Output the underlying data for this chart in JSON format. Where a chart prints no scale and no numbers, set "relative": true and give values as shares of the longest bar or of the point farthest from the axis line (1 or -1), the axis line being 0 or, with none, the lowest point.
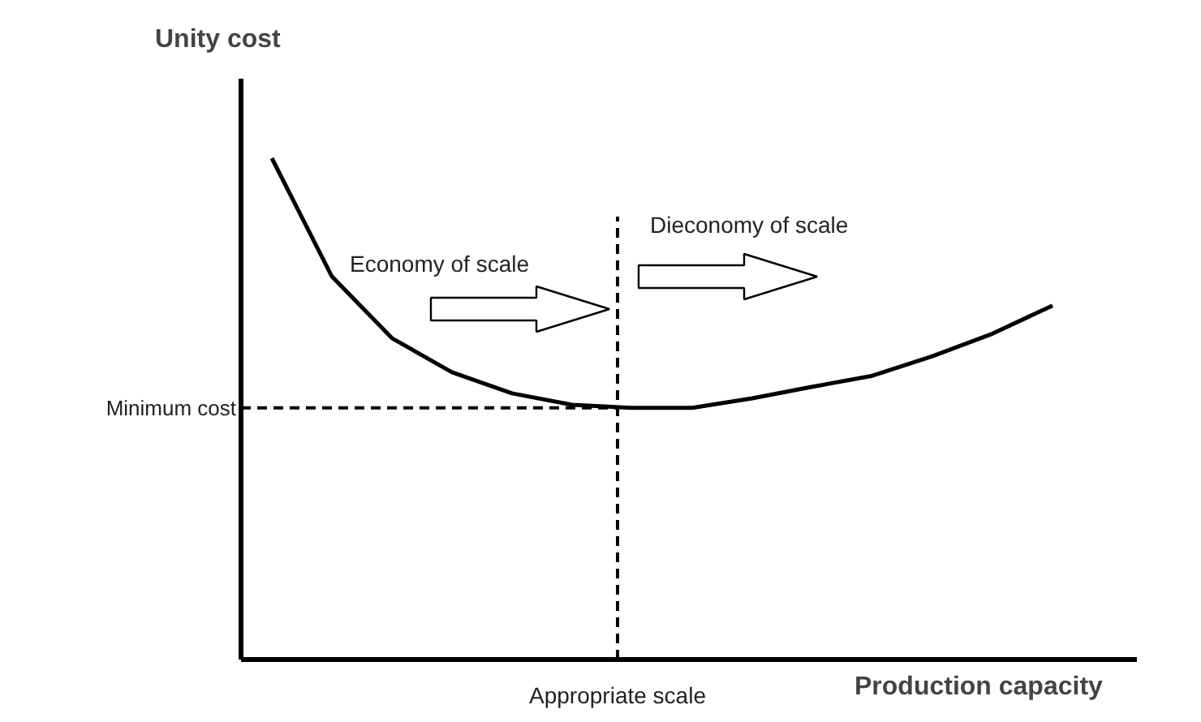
{
  "chart_data": {
    "type": "line",
    "relative": true,
    "ylabel": "Unity cost",
    "xlabel": "Production capacity",
    "categories": [
      null,
      null,
      null,
      null,
      null,
      null,
      null,
      null,
      null,
      null,
      null,
      null,
      null,
      null
    ],
    "series": [
      {
        "color": "#000000",
        "values": [
          1,
          0.764,
          0.641,
          0.573,
          0.531,
          0.508,
          0.502,
          0.502,
          0.521,
          0.544,
          0.566,
          0.605,
          0.65,
          0.706
        ]
      }
    ],
    "ref_lines": [
      {
        "axis": "y",
        "value": 0.502,
        "label": "Minimum cost",
        "line_style": "dashed",
        "color": "#000000"
      }
    ],
    "annotations": [
      "Economy of scale",
      "Dieconomy of scale",
      "Appropriate scale"
    ],
    "marker": "none",
    "line_style": "solid"
  }
}
